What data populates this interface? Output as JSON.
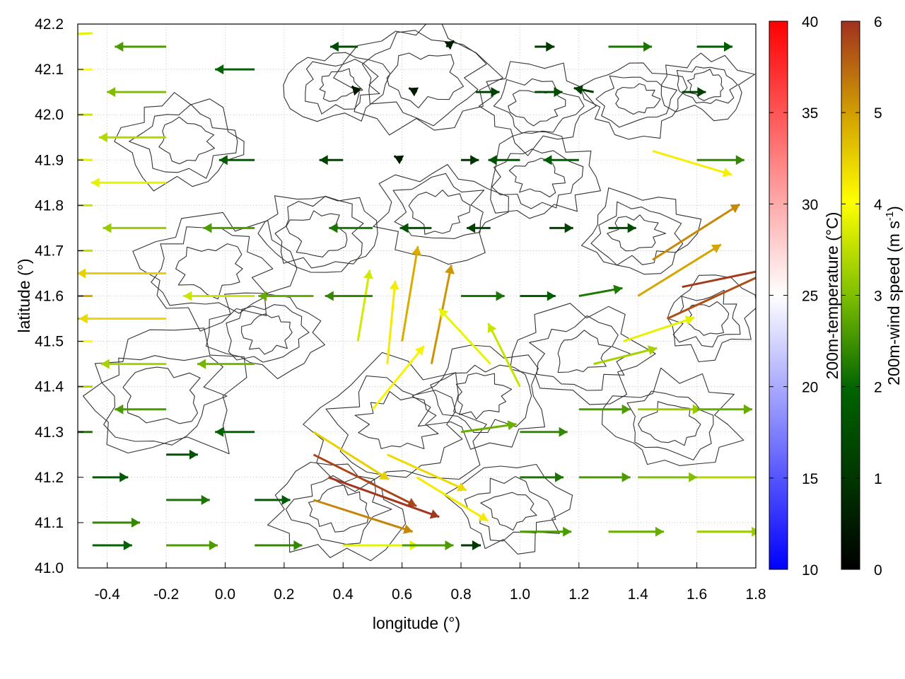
{
  "chart_data": {
    "type": "vector-field",
    "xlabel": "longitude (°)",
    "ylabel": "latitude (°)",
    "xlim": [
      -0.5,
      1.8
    ],
    "ylim": [
      41.0,
      42.2
    ],
    "xticks": [
      {
        "value": -0.4,
        "label": "-0.4"
      },
      {
        "value": -0.2,
        "label": "-0.2"
      },
      {
        "value": 0.0,
        "label": "0.0"
      },
      {
        "value": 0.2,
        "label": "0.2"
      },
      {
        "value": 0.4,
        "label": "0.4"
      },
      {
        "value": 0.6,
        "label": "0.6"
      },
      {
        "value": 0.8,
        "label": "0.8"
      },
      {
        "value": 1.0,
        "label": "1.0"
      },
      {
        "value": 1.2,
        "label": "1.2"
      },
      {
        "value": 1.4,
        "label": "1.4"
      },
      {
        "value": 1.6,
        "label": "1.6"
      },
      {
        "value": 1.8,
        "label": "1.8"
      }
    ],
    "yticks": [
      {
        "value": 41.0,
        "label": "41.0"
      },
      {
        "value": 41.1,
        "label": "41.1"
      },
      {
        "value": 41.2,
        "label": "41.2"
      },
      {
        "value": 41.3,
        "label": "41.3"
      },
      {
        "value": 41.4,
        "label": "41.4"
      },
      {
        "value": 41.5,
        "label": "41.5"
      },
      {
        "value": 41.6,
        "label": "41.6"
      },
      {
        "value": 41.7,
        "label": "41.7"
      },
      {
        "value": 41.8,
        "label": "41.8"
      },
      {
        "value": 41.9,
        "label": "41.9"
      },
      {
        "value": 42.0,
        "label": "42.0"
      },
      {
        "value": 42.1,
        "label": "42.1"
      },
      {
        "value": 42.2,
        "label": "42.2"
      }
    ],
    "grid": true,
    "colorbars": [
      {
        "label": "200m-temperature (°C)",
        "range": [
          10,
          40
        ],
        "ticks": [
          {
            "value": 10,
            "label": "10"
          },
          {
            "value": 15,
            "label": "15"
          },
          {
            "value": 20,
            "label": "20"
          },
          {
            "value": 25,
            "label": "25"
          },
          {
            "value": 30,
            "label": "30"
          },
          {
            "value": 35,
            "label": "35"
          },
          {
            "value": 40,
            "label": "40"
          }
        ],
        "colors": [
          "#0000ff",
          "#ffffff",
          "#ff0000"
        ]
      },
      {
        "label_main": "200m-wind speed (m s",
        "label_sup": "-1",
        "label_end": ")",
        "range": [
          0,
          6
        ],
        "ticks": [
          {
            "value": 0,
            "label": "0"
          },
          {
            "value": 1,
            "label": "1"
          },
          {
            "value": 2,
            "label": "2"
          },
          {
            "value": 3,
            "label": "3"
          },
          {
            "value": 4,
            "label": "4"
          },
          {
            "value": 5,
            "label": "5"
          },
          {
            "value": 6,
            "label": "6"
          }
        ],
        "colors": [
          "#000000",
          "#006400",
          "#7fbf00",
          "#ffff00",
          "#d2a000",
          "#c06010",
          "#a03020"
        ]
      }
    ],
    "vectors": [
      {
        "x": -0.45,
        "y": 42.18,
        "u": -3.8,
        "v": -0.2
      },
      {
        "x": -0.45,
        "y": 42.1,
        "u": -4.0,
        "v": -0.1
      },
      {
        "x": -0.45,
        "y": 42.0,
        "u": -3.6,
        "v": 0.0
      },
      {
        "x": -0.45,
        "y": 41.9,
        "u": -3.8,
        "v": 0.1
      },
      {
        "x": -0.45,
        "y": 41.8,
        "u": -3.6,
        "v": 0.0
      },
      {
        "x": -0.45,
        "y": 41.7,
        "u": -3.5,
        "v": 0.0
      },
      {
        "x": -0.45,
        "y": 41.6,
        "u": -4.9,
        "v": 0.0
      },
      {
        "x": -0.45,
        "y": 41.55,
        "u": -5.0,
        "v": 0.0
      },
      {
        "x": -0.45,
        "y": 41.5,
        "u": -4.0,
        "v": 0.0
      },
      {
        "x": -0.45,
        "y": 41.4,
        "u": -3.4,
        "v": 0.0
      },
      {
        "x": -0.45,
        "y": 41.3,
        "u": -2.2,
        "v": 0.0
      },
      {
        "x": -0.45,
        "y": 41.2,
        "u": 1.8,
        "v": 0.0
      },
      {
        "x": -0.45,
        "y": 41.1,
        "u": 2.4,
        "v": 0.0
      },
      {
        "x": -0.45,
        "y": 41.05,
        "u": 2.0,
        "v": 0.0
      },
      {
        "x": -0.2,
        "y": 42.15,
        "u": -2.6,
        "v": 0.0
      },
      {
        "x": -0.2,
        "y": 42.05,
        "u": -3.0,
        "v": 0.0
      },
      {
        "x": -0.2,
        "y": 41.95,
        "u": -3.4,
        "v": 0.0
      },
      {
        "x": -0.2,
        "y": 41.85,
        "u": -3.8,
        "v": 0.0
      },
      {
        "x": -0.2,
        "y": 41.75,
        "u": -3.2,
        "v": 0.0
      },
      {
        "x": -0.2,
        "y": 41.65,
        "u": -4.5,
        "v": 0.0
      },
      {
        "x": -0.2,
        "y": 41.55,
        "u": -4.4,
        "v": 0.0
      },
      {
        "x": -0.2,
        "y": 41.45,
        "u": -3.3,
        "v": 0.0
      },
      {
        "x": -0.2,
        "y": 41.35,
        "u": -2.6,
        "v": 0.0
      },
      {
        "x": -0.2,
        "y": 41.25,
        "u": 1.6,
        "v": 0.0
      },
      {
        "x": -0.2,
        "y": 41.15,
        "u": 2.2,
        "v": 0.0
      },
      {
        "x": -0.2,
        "y": 41.05,
        "u": 2.6,
        "v": 0.0
      },
      {
        "x": 0.1,
        "y": 42.1,
        "u": -2.0,
        "v": 0.0
      },
      {
        "x": 0.1,
        "y": 41.9,
        "u": -1.8,
        "v": 0.0
      },
      {
        "x": 0.1,
        "y": 41.75,
        "u": -2.6,
        "v": 0.0
      },
      {
        "x": 0.1,
        "y": 41.6,
        "u": -3.6,
        "v": 0.0
      },
      {
        "x": 0.1,
        "y": 41.45,
        "u": -2.9,
        "v": 0.0
      },
      {
        "x": 0.1,
        "y": 41.3,
        "u": -2.0,
        "v": 0.0
      },
      {
        "x": 0.1,
        "y": 41.15,
        "u": 1.8,
        "v": 0.0
      },
      {
        "x": 0.1,
        "y": 41.05,
        "u": 2.4,
        "v": 0.0
      },
      {
        "x": 0.3,
        "y": 41.3,
        "u": 3.8,
        "v": -2.4
      },
      {
        "x": 0.3,
        "y": 41.25,
        "u": 5.2,
        "v": -2.6
      },
      {
        "x": 0.35,
        "y": 41.2,
        "u": 5.6,
        "v": -2.0
      },
      {
        "x": 0.3,
        "y": 41.15,
        "u": 5.0,
        "v": -1.6
      },
      {
        "x": 0.45,
        "y": 41.5,
        "u": 0.6,
        "v": 3.6
      },
      {
        "x": 0.55,
        "y": 41.45,
        "u": 0.4,
        "v": 4.2
      },
      {
        "x": 0.6,
        "y": 41.5,
        "u": 0.8,
        "v": 4.8
      },
      {
        "x": 0.7,
        "y": 41.45,
        "u": 1.0,
        "v": 5.0
      },
      {
        "x": 0.5,
        "y": 41.35,
        "u": 2.6,
        "v": 3.2
      },
      {
        "x": 0.55,
        "y": 41.25,
        "u": 4.0,
        "v": -1.8
      },
      {
        "x": 0.65,
        "y": 41.2,
        "u": 3.6,
        "v": -2.2
      },
      {
        "x": 0.9,
        "y": 41.45,
        "u": -2.6,
        "v": 2.8
      },
      {
        "x": 1.0,
        "y": 41.4,
        "u": -1.6,
        "v": 3.2
      },
      {
        "x": 0.8,
        "y": 41.3,
        "u": 2.8,
        "v": 0.4
      },
      {
        "x": 1.0,
        "y": 41.3,
        "u": 2.4,
        "v": 0.0
      },
      {
        "x": 1.2,
        "y": 41.35,
        "u": 2.6,
        "v": 0.0
      },
      {
        "x": 1.4,
        "y": 41.35,
        "u": 3.2,
        "v": 0.0
      },
      {
        "x": 1.6,
        "y": 41.35,
        "u": 2.8,
        "v": 0.0
      },
      {
        "x": 1.0,
        "y": 41.2,
        "u": 2.2,
        "v": 0.0
      },
      {
        "x": 1.2,
        "y": 41.2,
        "u": 2.6,
        "v": 0.0
      },
      {
        "x": 1.4,
        "y": 41.2,
        "u": 3.0,
        "v": 0.0
      },
      {
        "x": 1.6,
        "y": 41.2,
        "u": 3.4,
        "v": 0.0
      },
      {
        "x": 1.0,
        "y": 41.08,
        "u": 2.6,
        "v": 0.0
      },
      {
        "x": 1.3,
        "y": 41.08,
        "u": 2.8,
        "v": 0.0
      },
      {
        "x": 1.6,
        "y": 41.08,
        "u": 3.2,
        "v": 0.0
      },
      {
        "x": 1.35,
        "y": 41.5,
        "u": 3.6,
        "v": 1.2
      },
      {
        "x": 1.4,
        "y": 41.6,
        "u": 4.2,
        "v": 2.6
      },
      {
        "x": 1.45,
        "y": 41.68,
        "u": 4.4,
        "v": 2.8
      },
      {
        "x": 1.5,
        "y": 41.55,
        "u": 5.2,
        "v": 2.4
      },
      {
        "x": 1.55,
        "y": 41.62,
        "u": 5.8,
        "v": 1.2
      },
      {
        "x": 1.25,
        "y": 41.45,
        "u": 3.2,
        "v": 0.8
      },
      {
        "x": 0.8,
        "y": 41.6,
        "u": 2.2,
        "v": 0.0
      },
      {
        "x": 1.0,
        "y": 41.6,
        "u": 1.8,
        "v": 0.0
      },
      {
        "x": 1.2,
        "y": 41.6,
        "u": 2.2,
        "v": 0.4
      },
      {
        "x": 0.5,
        "y": 41.6,
        "u": -2.4,
        "v": 0.0
      },
      {
        "x": 0.3,
        "y": 41.6,
        "u": -2.8,
        "v": 0.0
      },
      {
        "x": 0.5,
        "y": 41.75,
        "u": -2.2,
        "v": 0.0
      },
      {
        "x": 0.7,
        "y": 41.75,
        "u": -1.6,
        "v": 0.0
      },
      {
        "x": 0.9,
        "y": 41.75,
        "u": -1.2,
        "v": 0.0
      },
      {
        "x": 1.1,
        "y": 41.75,
        "u": 1.2,
        "v": 0.0
      },
      {
        "x": 1.3,
        "y": 41.75,
        "u": 1.4,
        "v": 0.0
      },
      {
        "x": 0.4,
        "y": 41.9,
        "u": -1.2,
        "v": 0.0
      },
      {
        "x": 0.6,
        "y": 41.9,
        "u": -0.4,
        "v": 0.2
      },
      {
        "x": 0.8,
        "y": 41.9,
        "u": 0.9,
        "v": 0.0
      },
      {
        "x": 1.0,
        "y": 41.9,
        "u": -1.6,
        "v": 0.0
      },
      {
        "x": 1.2,
        "y": 41.9,
        "u": -1.8,
        "v": 0.0
      },
      {
        "x": 1.45,
        "y": 41.92,
        "u": 4.0,
        "v": -1.2
      },
      {
        "x": 1.6,
        "y": 41.9,
        "u": 2.4,
        "v": 0.0
      },
      {
        "x": 0.45,
        "y": 42.05,
        "u": -0.3,
        "v": 0.3
      },
      {
        "x": 0.65,
        "y": 42.05,
        "u": -0.4,
        "v": 0.2
      },
      {
        "x": 0.85,
        "y": 42.05,
        "u": 1.2,
        "v": 0.0
      },
      {
        "x": 1.05,
        "y": 42.05,
        "u": 1.4,
        "v": 0.0
      },
      {
        "x": 1.25,
        "y": 42.05,
        "u": -1.0,
        "v": 0.2
      },
      {
        "x": 1.55,
        "y": 42.05,
        "u": 1.2,
        "v": 0.0
      },
      {
        "x": 0.45,
        "y": 42.15,
        "u": -1.4,
        "v": 0.0
      },
      {
        "x": 0.75,
        "y": 42.15,
        "u": 0.4,
        "v": 0.3
      },
      {
        "x": 1.05,
        "y": 42.15,
        "u": 1.0,
        "v": 0.0
      },
      {
        "x": 1.3,
        "y": 42.15,
        "u": 2.2,
        "v": 0.0
      },
      {
        "x": 1.6,
        "y": 42.15,
        "u": 1.8,
        "v": 0.0
      },
      {
        "x": 0.4,
        "y": 41.05,
        "u": 3.8,
        "v": 0.0
      },
      {
        "x": 0.6,
        "y": 41.05,
        "u": 2.6,
        "v": 0.0
      },
      {
        "x": 0.8,
        "y": 41.05,
        "u": 1.0,
        "v": 0.0
      }
    ]
  }
}
